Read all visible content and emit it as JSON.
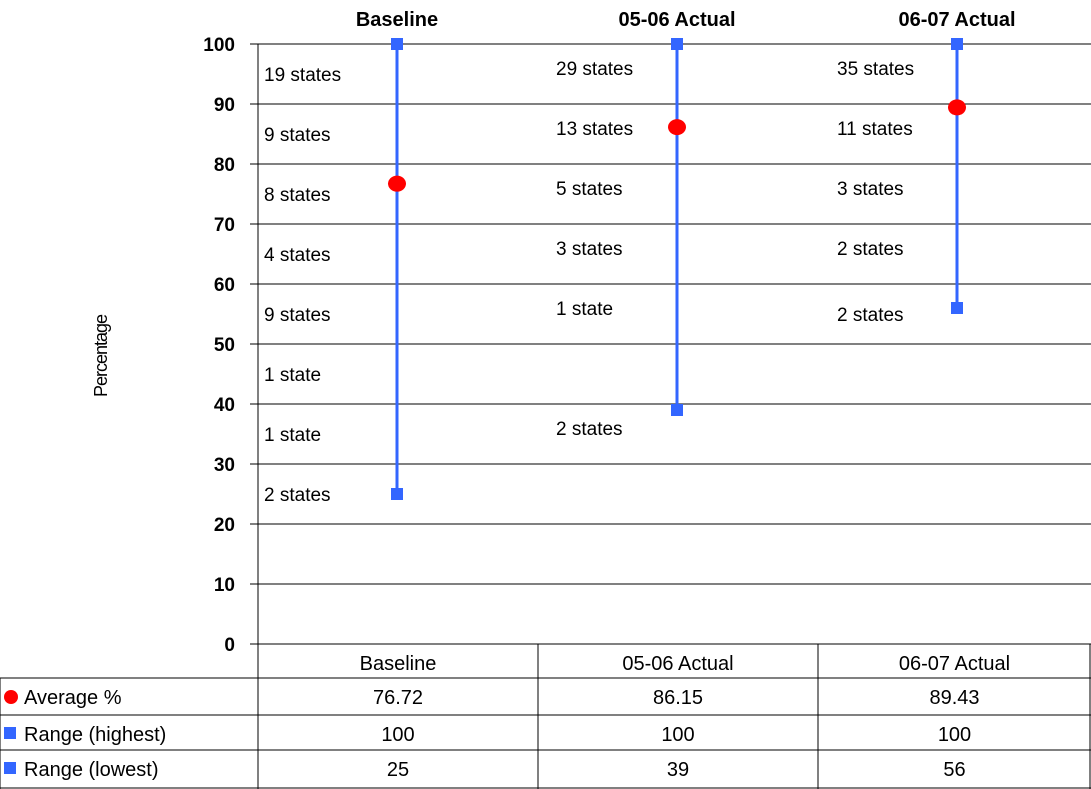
{
  "chart_data": {
    "type": "line",
    "ylabel": "Percentage",
    "ylim": [
      0,
      100
    ],
    "y_ticks": [
      "0",
      "10",
      "20",
      "30",
      "40",
      "50",
      "60",
      "70",
      "80",
      "90",
      "100"
    ],
    "grid": true,
    "categories": [
      "Baseline",
      "05-06 Actual",
      "06-07 Actual"
    ],
    "series": [
      {
        "name": "Average %",
        "marker": "circle",
        "color": "#ff0000",
        "values": [
          76.72,
          86.15,
          89.43
        ],
        "display": [
          "76.72",
          "86.15",
          "89.43"
        ]
      },
      {
        "name": "Range (highest)",
        "marker": "square",
        "color": "#3366ff",
        "values": [
          100,
          100,
          100
        ],
        "display": [
          "100",
          "100",
          "100"
        ]
      },
      {
        "name": "Range (lowest)",
        "marker": "square",
        "color": "#3366ff",
        "values": [
          25,
          39,
          56
        ],
        "display": [
          "25",
          "39",
          "56"
        ]
      }
    ],
    "range_line_color": "#3366ff",
    "band_labels": [
      [
        {
          "text": "19 states",
          "y": 95
        },
        {
          "text": "9 states",
          "y": 85
        },
        {
          "text": "8 states",
          "y": 75
        },
        {
          "text": "4 states",
          "y": 65
        },
        {
          "text": "9 states",
          "y": 55
        },
        {
          "text": "1 state",
          "y": 45
        },
        {
          "text": "1 state",
          "y": 35
        },
        {
          "text": "2 states",
          "y": 25
        }
      ],
      [
        {
          "text": "29 states",
          "y": 96
        },
        {
          "text": "13 states",
          "y": 86
        },
        {
          "text": "5 states",
          "y": 76
        },
        {
          "text": "3 states",
          "y": 66
        },
        {
          "text": "1 state",
          "y": 56
        },
        {
          "text": "2 states",
          "y": 36
        }
      ],
      [
        {
          "text": "35 states",
          "y": 96
        },
        {
          "text": "11 states",
          "y": 86
        },
        {
          "text": "3 states",
          "y": 76
        },
        {
          "text": "2 states",
          "y": 66
        },
        {
          "text": "2 states",
          "y": 55
        }
      ]
    ]
  }
}
